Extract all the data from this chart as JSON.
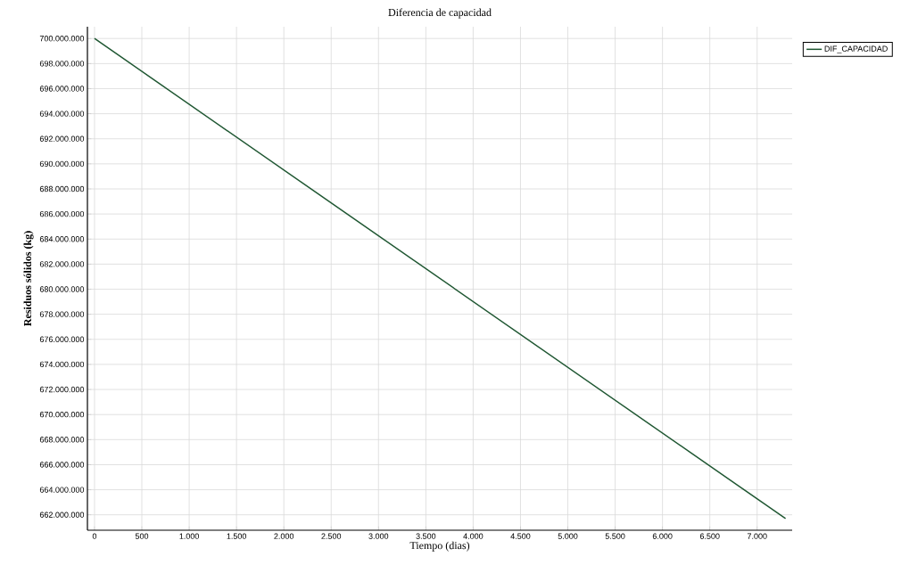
{
  "chart_data": {
    "type": "line",
    "title": "Diferencia de capacidad",
    "xlabel": "Tiempo (dias)",
    "ylabel": "Residuos sólidos (kg)",
    "x": [
      0,
      7300
    ],
    "series": [
      {
        "name": "DIF_CAPACIDAD",
        "color": "#1e5631",
        "values": [
          700000000,
          661700000
        ]
      }
    ],
    "xlim": [
      -75,
      7370
    ],
    "ylim": [
      660770000,
      700940000
    ],
    "xticks": [
      0,
      {
        "value": 500,
        "label": "500"
      },
      {
        "value": 1000,
        "label": "1.000"
      },
      {
        "value": 1500,
        "label": "1.500"
      },
      {
        "value": 2000,
        "label": "2.000"
      },
      {
        "value": 2500,
        "label": "2.500"
      },
      {
        "value": 3000,
        "label": "3.000"
      },
      {
        "value": 3500,
        "label": "3.500"
      },
      {
        "value": 4000,
        "label": "4.000"
      },
      {
        "value": 4500,
        "label": "4.500"
      },
      {
        "value": 5000,
        "label": "5.000"
      },
      {
        "value": 5500,
        "label": "5.500"
      },
      {
        "value": 6000,
        "label": "6.000"
      },
      {
        "value": 6500,
        "label": "6.500"
      },
      {
        "value": 7000,
        "label": "7.000"
      }
    ],
    "yticks": [
      {
        "value": 662000000,
        "label": "662.000.000"
      },
      {
        "value": 664000000,
        "label": "664.000.000"
      },
      {
        "value": 666000000,
        "label": "666.000.000"
      },
      {
        "value": 668000000,
        "label": "668.000.000"
      },
      {
        "value": 670000000,
        "label": "670.000.000"
      },
      {
        "value": 672000000,
        "label": "672.000.000"
      },
      {
        "value": 674000000,
        "label": "674.000.000"
      },
      {
        "value": 676000000,
        "label": "676.000.000"
      },
      {
        "value": 678000000,
        "label": "678.000.000"
      },
      {
        "value": 680000000,
        "label": "680.000.000"
      },
      {
        "value": 682000000,
        "label": "682.000.000"
      },
      {
        "value": 684000000,
        "label": "684.000.000"
      },
      {
        "value": 686000000,
        "label": "686.000.000"
      },
      {
        "value": 688000000,
        "label": "688.000.000"
      },
      {
        "value": 690000000,
        "label": "690.000.000"
      },
      {
        "value": 692000000,
        "label": "692.000.000"
      },
      {
        "value": 694000000,
        "label": "694.000.000"
      },
      {
        "value": 696000000,
        "label": "696.000.000"
      },
      {
        "value": 698000000,
        "label": "698.000.000"
      },
      {
        "value": 700000000,
        "label": "700.000.000"
      }
    ],
    "grid": true,
    "legend": "top right",
    "marker": "none",
    "line_style": "solid"
  }
}
